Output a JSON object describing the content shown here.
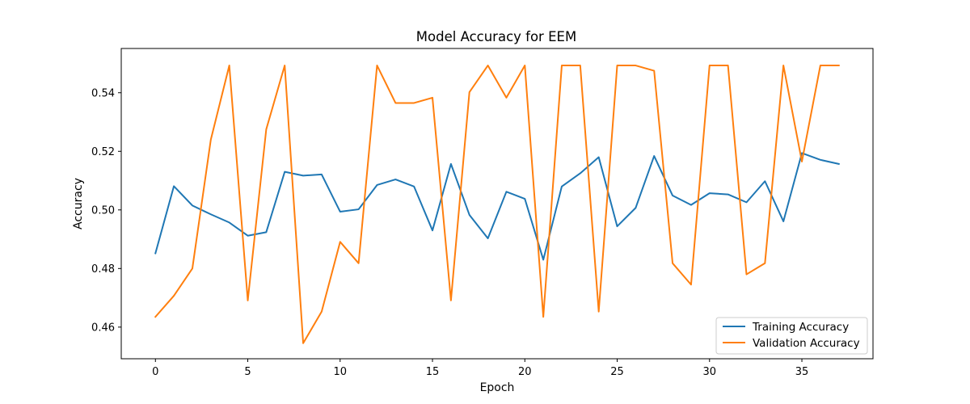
{
  "chart_data": {
    "type": "line",
    "title": "Model Accuracy for EEM",
    "xlabel": "Epoch",
    "ylabel": "Accuracy",
    "x": [
      0,
      1,
      2,
      3,
      4,
      5,
      6,
      7,
      8,
      9,
      10,
      11,
      12,
      13,
      14,
      15,
      16,
      17,
      18,
      19,
      20,
      21,
      22,
      23,
      24,
      25,
      26,
      27,
      28,
      29,
      30,
      31,
      32,
      33,
      34,
      35,
      36,
      37
    ],
    "xlim": [
      -1.85,
      38.85
    ],
    "ylim": [
      0.4492,
      0.5551
    ],
    "xticks": [
      0,
      5,
      10,
      15,
      20,
      25,
      30,
      35
    ],
    "yticks": [
      0.46,
      0.48,
      0.5,
      0.52,
      0.54
    ],
    "xtick_labels": [
      "0",
      "5",
      "10",
      "15",
      "20",
      "25",
      "30",
      "35"
    ],
    "ytick_labels": [
      "0.46",
      "0.48",
      "0.50",
      "0.52",
      "0.54"
    ],
    "grid": false,
    "legend_position": "lower-right",
    "series": [
      {
        "name": "Training Accuracy",
        "color": "#1f77b4",
        "values": [
          0.4852,
          0.5081,
          0.5015,
          0.4985,
          0.4957,
          0.4912,
          0.4924,
          0.513,
          0.5117,
          0.5121,
          0.4994,
          0.5002,
          0.5085,
          0.5104,
          0.508,
          0.493,
          0.5157,
          0.4983,
          0.4903,
          0.5062,
          0.5038,
          0.483,
          0.508,
          0.5125,
          0.518,
          0.4944,
          0.5007,
          0.5184,
          0.5049,
          0.5017,
          0.5057,
          0.5053,
          0.5026,
          0.5098,
          0.4961,
          0.5194,
          0.5171,
          0.5157
        ]
      },
      {
        "name": "Validation Accuracy",
        "color": "#ff7f0e",
        "values": [
          0.4635,
          0.4707,
          0.48,
          0.524,
          0.5493,
          0.4691,
          0.5275,
          0.5493,
          0.4545,
          0.4653,
          0.4891,
          0.4818,
          0.5493,
          0.5365,
          0.5365,
          0.5383,
          0.4691,
          0.5402,
          0.5493,
          0.5383,
          0.5493,
          0.4635,
          0.5493,
          0.5493,
          0.4653,
          0.5493,
          0.5493,
          0.5475,
          0.4818,
          0.4745,
          0.5493,
          0.5493,
          0.478,
          0.4818,
          0.5493,
          0.5165,
          0.5493,
          0.5493
        ]
      }
    ]
  }
}
